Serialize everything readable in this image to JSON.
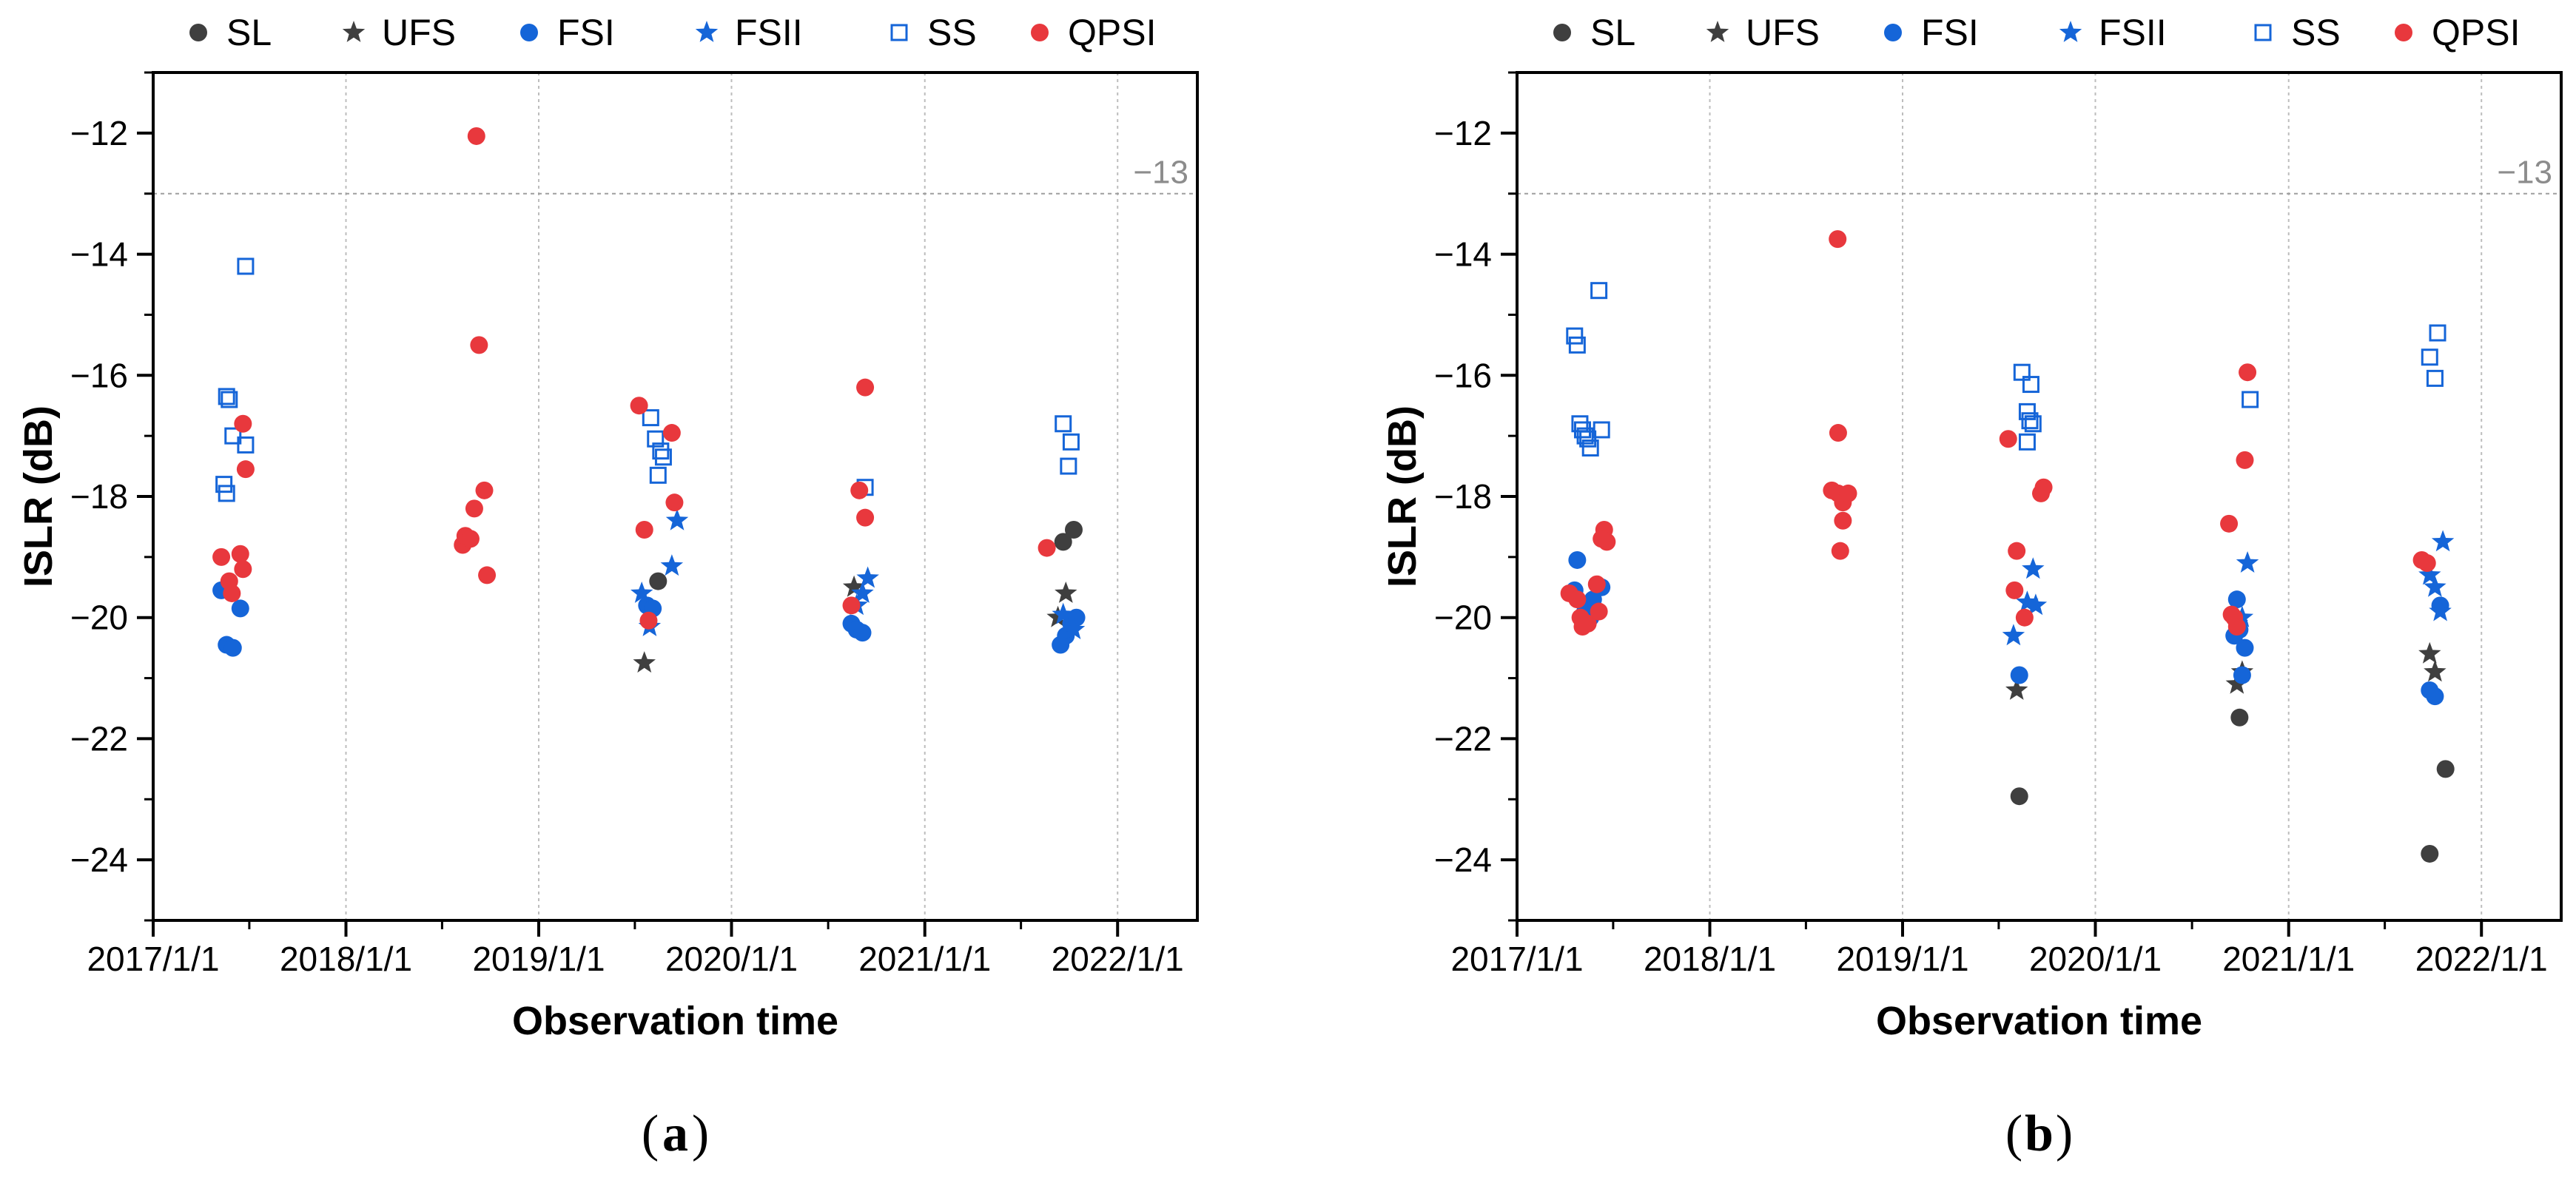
{
  "chart_data": [
    {
      "panel": "a",
      "type": "scatter",
      "panel_label": "a",
      "xlabel": "Observation time",
      "ylabel": "ISLR (dB)",
      "x_ticks": [
        "2017/1/1",
        "2018/1/1",
        "2019/1/1",
        "2020/1/1",
        "2021/1/1",
        "2022/1/1"
      ],
      "xlim": [
        "2017-01-01",
        "2022-06-01"
      ],
      "ylim": [
        -25,
        -11
      ],
      "y_ticks": [
        -12,
        -14,
        -16,
        -18,
        -20,
        -22,
        -24
      ],
      "grid": "vertical dotted at year ticks",
      "legend_position": "top",
      "reference_line": {
        "value": -13,
        "label": "−13"
      },
      "series": [
        {
          "name": "SL",
          "marker": "filled-circle",
          "color": "#3f3f3f",
          "points": [
            [
              "2019-08-15",
              -19.4
            ],
            [
              "2021-09-20",
              -18.75
            ],
            [
              "2021-10-10",
              -18.55
            ]
          ]
        },
        {
          "name": "UFS",
          "marker": "star",
          "color": "#3f3f3f",
          "points": [
            [
              "2019-07-20",
              -20.75
            ],
            [
              "2020-08-20",
              -19.5
            ],
            [
              "2021-09-10",
              -20.0
            ],
            [
              "2021-09-25",
              -19.6
            ]
          ]
        },
        {
          "name": "FSI",
          "marker": "filled-circle",
          "color": "#1565d8",
          "points": [
            [
              "2017-05-10",
              -19.55
            ],
            [
              "2017-05-20",
              -20.45
            ],
            [
              "2017-06-01",
              -20.5
            ],
            [
              "2017-06-15",
              -19.85
            ],
            [
              "2019-07-25",
              -19.8
            ],
            [
              "2019-08-05",
              -19.85
            ],
            [
              "2020-08-15",
              -20.1
            ],
            [
              "2020-08-25",
              -20.2
            ],
            [
              "2020-09-05",
              -20.25
            ],
            [
              "2021-09-15",
              -20.45
            ],
            [
              "2021-09-25",
              -20.3
            ],
            [
              "2021-10-05",
              -20.1
            ],
            [
              "2021-10-15",
              -20.0
            ]
          ]
        },
        {
          "name": "FSII",
          "marker": "star",
          "color": "#1565d8",
          "points": [
            [
              "2019-07-15",
              -19.6
            ],
            [
              "2019-07-30",
              -20.15
            ],
            [
              "2019-09-10",
              -19.15
            ],
            [
              "2019-09-20",
              -18.4
            ],
            [
              "2020-08-25",
              -19.8
            ],
            [
              "2020-09-05",
              -19.6
            ],
            [
              "2020-09-15",
              -19.35
            ],
            [
              "2021-09-20",
              -19.95
            ],
            [
              "2021-10-10",
              -20.2
            ]
          ]
        },
        {
          "name": "SS",
          "marker": "open-square",
          "color": "#1565d8",
          "points": [
            [
              "2017-05-20",
              -16.35
            ],
            [
              "2017-05-25",
              -16.4
            ],
            [
              "2017-06-01",
              -17.0
            ],
            [
              "2017-05-15",
              -17.8
            ],
            [
              "2017-05-20",
              -17.95
            ],
            [
              "2017-06-25",
              -17.15
            ],
            [
              "2017-06-25",
              -14.2
            ],
            [
              "2019-08-01",
              -16.7
            ],
            [
              "2019-08-10",
              -17.05
            ],
            [
              "2019-08-20",
              -17.25
            ],
            [
              "2019-08-25",
              -17.35
            ],
            [
              "2019-08-15",
              -17.65
            ],
            [
              "2020-09-10",
              -17.85
            ],
            [
              "2021-09-20",
              -16.8
            ],
            [
              "2021-10-05",
              -17.1
            ],
            [
              "2021-09-30",
              -17.5
            ]
          ]
        },
        {
          "name": "QPSI",
          "marker": "filled-circle",
          "color": "#e8383d",
          "points": [
            [
              "2017-05-10",
              -19.0
            ],
            [
              "2017-05-25",
              -19.4
            ],
            [
              "2017-05-30",
              -19.6
            ],
            [
              "2017-06-15",
              -18.95
            ],
            [
              "2017-06-20",
              -19.2
            ],
            [
              "2017-06-25",
              -17.55
            ],
            [
              "2017-06-20",
              -16.8
            ],
            [
              "2018-08-10",
              -18.8
            ],
            [
              "2018-08-15",
              -18.65
            ],
            [
              "2018-08-25",
              -18.7
            ],
            [
              "2018-09-01",
              -18.2
            ],
            [
              "2018-09-05",
              -12.05
            ],
            [
              "2018-09-10",
              -15.5
            ],
            [
              "2018-09-20",
              -17.9
            ],
            [
              "2018-09-25",
              -19.3
            ],
            [
              "2019-07-10",
              -16.5
            ],
            [
              "2019-07-20",
              -18.55
            ],
            [
              "2019-07-28",
              -20.05
            ],
            [
              "2019-09-10",
              -16.95
            ],
            [
              "2019-09-15",
              -18.1
            ],
            [
              "2020-08-15",
              -19.8
            ],
            [
              "2020-08-30",
              -17.9
            ],
            [
              "2020-09-10",
              -18.35
            ],
            [
              "2020-09-10",
              -16.2
            ],
            [
              "2021-08-20",
              -18.85
            ]
          ]
        }
      ]
    },
    {
      "panel": "b",
      "type": "scatter",
      "panel_label": "b",
      "xlabel": "Observation time",
      "ylabel": "ISLR (dB)",
      "x_ticks": [
        "2017/1/1",
        "2018/1/1",
        "2019/1/1",
        "2020/1/1",
        "2021/1/1",
        "2022/1/1"
      ],
      "xlim": [
        "2017-01-01",
        "2022-06-01"
      ],
      "ylim": [
        -25,
        -11
      ],
      "y_ticks": [
        -12,
        -14,
        -16,
        -18,
        -20,
        -22,
        -24
      ],
      "grid": "vertical dotted at year ticks",
      "legend_position": "top",
      "reference_line": {
        "value": -13,
        "label": "−13"
      },
      "series": [
        {
          "name": "SL",
          "marker": "filled-circle",
          "color": "#3f3f3f",
          "points": [
            [
              "2019-08-10",
              -22.95
            ],
            [
              "2020-09-30",
              -21.65
            ],
            [
              "2021-09-25",
              -23.9
            ],
            [
              "2021-10-25",
              -22.5
            ]
          ]
        },
        {
          "name": "UFS",
          "marker": "star",
          "color": "#3f3f3f",
          "points": [
            [
              "2019-08-05",
              -21.2
            ],
            [
              "2020-09-25",
              -21.1
            ],
            [
              "2020-10-05",
              -20.9
            ],
            [
              "2021-09-25",
              -20.6
            ],
            [
              "2021-10-05",
              -20.9
            ]
          ]
        },
        {
          "name": "FSI",
          "marker": "filled-circle",
          "color": "#1565d8",
          "points": [
            [
              "2017-04-25",
              -19.05
            ],
            [
              "2017-04-20",
              -19.55
            ],
            [
              "2017-05-10",
              -19.9
            ],
            [
              "2017-05-20",
              -20.0
            ],
            [
              "2017-05-25",
              -19.7
            ],
            [
              "2017-06-10",
              -19.5
            ],
            [
              "2019-08-10",
              -20.95
            ],
            [
              "2020-09-20",
              -20.3
            ],
            [
              "2020-09-30",
              -20.2
            ],
            [
              "2020-10-05",
              -20.95
            ],
            [
              "2020-10-10",
              -20.5
            ],
            [
              "2020-09-25",
              -19.7
            ],
            [
              "2021-09-25",
              -21.2
            ],
            [
              "2021-10-05",
              -21.3
            ],
            [
              "2021-10-15",
              -19.8
            ]
          ]
        },
        {
          "name": "FSII",
          "marker": "star",
          "color": "#1565d8",
          "points": [
            [
              "2019-07-30",
              -20.3
            ],
            [
              "2019-08-25",
              -19.75
            ],
            [
              "2019-09-10",
              -19.8
            ],
            [
              "2019-09-05",
              -19.2
            ],
            [
              "2020-09-25",
              -20.1
            ],
            [
              "2020-10-05",
              -20.0
            ],
            [
              "2020-10-15",
              -19.1
            ],
            [
              "2021-09-25",
              -19.3
            ],
            [
              "2021-10-05",
              -19.5
            ],
            [
              "2021-10-15",
              -19.9
            ],
            [
              "2021-10-20",
              -18.75
            ]
          ]
        },
        {
          "name": "SS",
          "marker": "open-square",
          "color": "#1565d8",
          "points": [
            [
              "2017-04-20",
              -15.35
            ],
            [
              "2017-04-25",
              -15.5
            ],
            [
              "2017-04-30",
              -16.8
            ],
            [
              "2017-05-05",
              -16.9
            ],
            [
              "2017-05-10",
              -17.0
            ],
            [
              "2017-05-15",
              -17.05
            ],
            [
              "2017-05-20",
              -17.2
            ],
            [
              "2017-06-10",
              -16.9
            ],
            [
              "2017-06-05",
              -14.6
            ],
            [
              "2019-08-15",
              -15.95
            ],
            [
              "2019-09-01",
              -16.15
            ],
            [
              "2019-08-25",
              -16.6
            ],
            [
              "2019-08-30",
              -16.75
            ],
            [
              "2019-09-05",
              -16.8
            ],
            [
              "2019-08-25",
              -17.1
            ],
            [
              "2020-10-20",
              -16.4
            ],
            [
              "2021-09-25",
              -15.7
            ],
            [
              "2021-10-10",
              -15.3
            ],
            [
              "2021-10-05",
              -16.05
            ]
          ]
        },
        {
          "name": "QPSI",
          "marker": "filled-circle",
          "color": "#e8383d",
          "points": [
            [
              "2017-04-10",
              -19.6
            ],
            [
              "2017-04-25",
              -19.7
            ],
            [
              "2017-05-01",
              -20.0
            ],
            [
              "2017-05-05",
              -20.15
            ],
            [
              "2017-05-15",
              -20.1
            ],
            [
              "2017-06-01",
              -19.45
            ],
            [
              "2017-06-05",
              -19.9
            ],
            [
              "2017-06-15",
              -18.55
            ],
            [
              "2017-06-20",
              -18.75
            ],
            [
              "2017-06-10",
              -18.7
            ],
            [
              "2018-08-20",
              -17.9
            ],
            [
              "2018-09-01",
              -17.95
            ],
            [
              "2018-09-10",
              -18.1
            ],
            [
              "2018-09-20",
              -17.95
            ],
            [
              "2018-09-05",
              -18.9
            ],
            [
              "2018-09-10",
              -18.4
            ],
            [
              "2018-09-01",
              -16.95
            ],
            [
              "2018-08-31",
              -13.75
            ],
            [
              "2019-07-20",
              -17.05
            ],
            [
              "2019-08-05",
              -18.9
            ],
            [
              "2019-08-01",
              -19.55
            ],
            [
              "2019-08-20",
              -20.0
            ],
            [
              "2019-09-20",
              -17.95
            ],
            [
              "2019-09-25",
              -17.85
            ],
            [
              "2020-09-10",
              -18.45
            ],
            [
              "2020-09-15",
              -19.95
            ],
            [
              "2020-09-20",
              -20.0
            ],
            [
              "2020-09-25",
              -20.15
            ],
            [
              "2020-10-10",
              -17.4
            ],
            [
              "2020-10-15",
              -15.95
            ],
            [
              "2021-09-10",
              -19.05
            ],
            [
              "2021-09-20",
              -19.1
            ]
          ]
        }
      ]
    }
  ]
}
